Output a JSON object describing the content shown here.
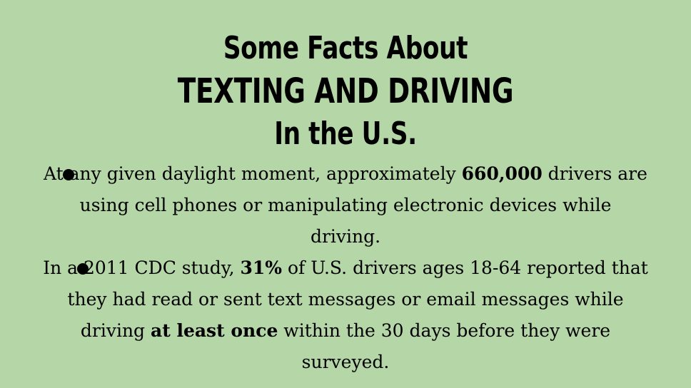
{
  "title": {
    "line1": "Some Facts About",
    "line2": "TEXTING AND DRIVING",
    "line3": "In the U.S."
  },
  "bullets": [
    {
      "pre": "At any given daylight moment, approximately ",
      "bold": "660,000",
      "post": " drivers are using cell phones or manipulating electronic devices while driving."
    },
    {
      "pre": "In a 2011 CDC study, ",
      "bold": "31%",
      "mid": " of U.S. drivers ages 18-64 reported that they had read or sent text messages or email messages while driving ",
      "bold2": "at least once",
      "post": " within the 30 days before they were surveyed."
    }
  ]
}
